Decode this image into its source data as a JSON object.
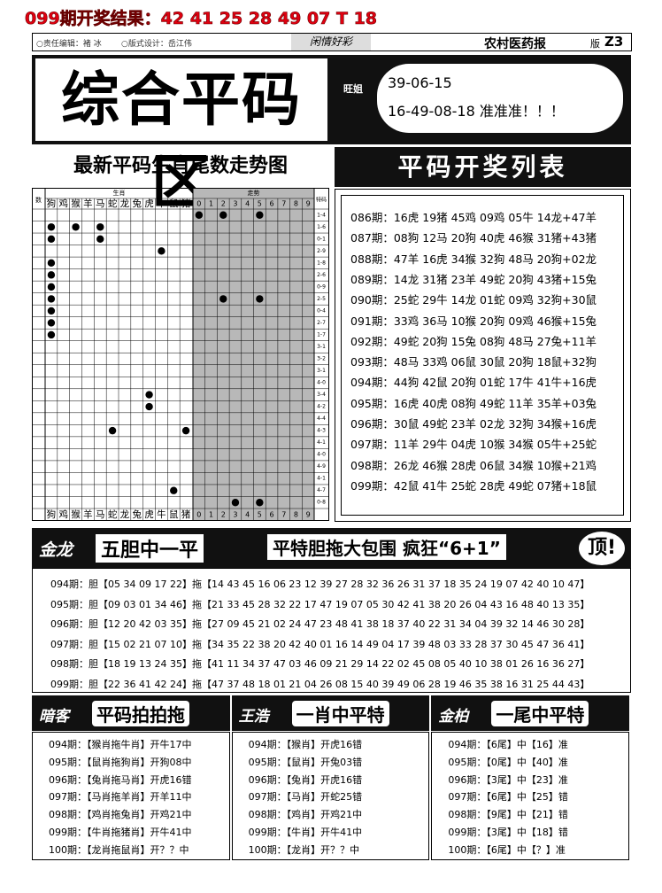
{
  "header": {
    "result": "099期开奖结果：42 41 25 28 49 07 T 18",
    "editor": "○责任编辑：褚 冰",
    "designer": "○版式设计：岳江伟",
    "column": "闲情好彩",
    "paper": "农村医药报",
    "page_label": "版",
    "page_no": "Z3"
  },
  "masthead": {
    "title": "综合平码区",
    "author": "旺姐",
    "line1": "39-06-15",
    "line2": "16-49-08-18 准准准！！！"
  },
  "trend_chart": {
    "title": "最新平码生肖尾数走势图",
    "corner": "数",
    "group_zodiac": "生肖",
    "group_trend": "走势",
    "group_special": "特码",
    "zodiac": [
      "狗",
      "鸡",
      "猴",
      "羊",
      "马",
      "蛇",
      "龙",
      "兔",
      "虎",
      "牛",
      "鼠",
      "猪"
    ],
    "digits": [
      0,
      1,
      2,
      3,
      4,
      5,
      6,
      7,
      8,
      9
    ],
    "rows": [
      {
        "special": "1-4",
        "marks": [
          0,
          2,
          5
        ]
      },
      {
        "special": "1-6",
        "marks": [
          "狗",
          "猴",
          "马"
        ]
      },
      {
        "special": "0-1",
        "marks": [
          "狗",
          "马"
        ]
      },
      {
        "special": "2-9",
        "marks": [
          "牛"
        ]
      },
      {
        "special": "1-8",
        "marks": [
          "狗"
        ]
      },
      {
        "special": "2-6",
        "marks": [
          "狗"
        ]
      },
      {
        "special": "0-9",
        "marks": [
          "狗"
        ]
      },
      {
        "special": "2-5",
        "marks": [
          "狗",
          2,
          5
        ]
      },
      {
        "special": "0-4",
        "marks": [
          "狗"
        ]
      },
      {
        "special": "2-7",
        "marks": [
          "狗"
        ]
      },
      {
        "special": "1-7",
        "marks": [
          "狗"
        ]
      },
      {
        "special": "3-1",
        "marks": []
      },
      {
        "special": "3-2",
        "marks": []
      },
      {
        "special": "3-1",
        "marks": []
      },
      {
        "special": "4-0",
        "marks": []
      },
      {
        "special": "3-4",
        "marks": [
          "虎"
        ]
      },
      {
        "special": "4-2",
        "marks": [
          "虎"
        ]
      },
      {
        "special": "4-4",
        "marks": []
      },
      {
        "special": "4-3",
        "marks": [
          "蛇",
          "猪"
        ]
      },
      {
        "special": "4-1",
        "marks": []
      },
      {
        "special": "4-0",
        "marks": []
      },
      {
        "special": "4-9",
        "marks": []
      },
      {
        "special": "4-1",
        "marks": []
      },
      {
        "special": "4-7",
        "marks": [
          "鼠"
        ]
      },
      {
        "special": "0-8",
        "marks": [
          3,
          5
        ]
      }
    ]
  },
  "draw_list": {
    "title": "平码开奖列表",
    "rows": [
      "086期：16虎 19猪 45鸡 09鸡 05牛 14龙+47羊",
      "087期：08狗 12马 20狗 40虎 46猴 31猪+43猪",
      "088期：47羊 16虎 34猴 32狗 48马 20狗+02龙",
      "089期：14龙 31猪 23羊 49蛇 20狗 43猪+15兔",
      "090期：25蛇 29牛 14龙 01蛇 09鸡 32狗+30鼠",
      "091期：33鸡 36马 10猴 20狗 09鸡 46猴+15兔",
      "092期：49蛇 20狗 15兔 08狗 48马 27兔+11羊",
      "093期：48马 33鸡 06鼠 30鼠 20狗 18鼠+32狗",
      "094期：44狗 42鼠 20狗 01蛇 17牛 41牛+16虎",
      "095期：16虎 40虎 08狗 49蛇 11羊 35羊+03兔",
      "096期：30鼠 49蛇 23羊 02龙 32狗 34猴+16虎",
      "097期：11羊 29牛 04虎 10猴 34猴 05牛+25蛇",
      "098期：26龙 46猴 28虎 06鼠 34猴 10猴+21鸡",
      "099期：42鼠 41牛 25蛇 28虎 49蛇 07猪+18鼠"
    ]
  },
  "jinlong": {
    "author": "金龙",
    "title": "五胆中一平",
    "slogan": "平特胆拖大包围 疯狂“6+1”",
    "badge": "顶!",
    "rows": [
      "094期：胆【05 34 09 17 22】拖【14 43 45 16 06 23 12 39 27 28 32 36 26 31 37 18 35 24 19 07 42 40 10 47】",
      "095期：胆【09 03 01 34 46】拖【21 33 45 28 32 22 17 47 19 07 05 30 42 41 38 20 26 04 43 16 48 40 13 35】",
      "096期：胆【12 20 42 03 35】拖【27 09 45 21 02 24 47 23 48 41 38 18 37 40 22 31 34 04 39 32 14 46 30 28】",
      "097期：胆【15 02 21 07 10】拖【34 35 22 38 20 42 40 01 16 14 49 04 17 39 48 03 33 28 37 30 45 47 36 41】",
      "098期：胆【18 19 13 24 35】拖【41 11 34 37 47 03 46 09 21 29 14 22 02 45 08 05 40 10 38 01 26 16 36 27】",
      "099期：胆【22 36 41 42 24】拖【47 37 48 18 01 21 04 26 08 15 40 39 49 06 28 19 46 35 38 16 31 25 44 43】"
    ]
  },
  "columns": [
    {
      "author": "暗客",
      "title": "平码拍拍拖",
      "rows": [
        "094期：【猴肖拖牛肖】开牛17中",
        "095期：【鼠肖拖狗肖】开狗08中",
        "096期：【兔肖拖马肖】开虎16错",
        "097期：【马肖拖羊肖】开羊11中",
        "098期：【鸡肖拖兔肖】开鸡21中",
        "099期：【牛肖拖猪肖】开牛41中",
        "100期：【龙肖拖鼠肖】开？？中"
      ]
    },
    {
      "author": "王浩",
      "title": "一肖中平特",
      "rows": [
        "094期：【猴肖】开虎16错",
        "095期：【鼠肖】开兔03错",
        "096期：【兔肖】开虎16错",
        "097期：【马肖】开蛇25错",
        "098期：【鸡肖】开鸡21中",
        "099期：【牛肖】开牛41中",
        "100期：【龙肖】开？？中"
      ]
    },
    {
      "author": "金柏",
      "title": "一尾中平特",
      "rows": [
        "094期：【6尾】中【16】准",
        "095期：【0尾】中【40】准",
        "096期：【3尾】中【23】准",
        "097期：【6尾】中【25】错",
        "098期：【9尾】中【21】错",
        "099期：【3尾】中【18】错",
        "100期：【6尾】中【？】准"
      ]
    }
  ]
}
